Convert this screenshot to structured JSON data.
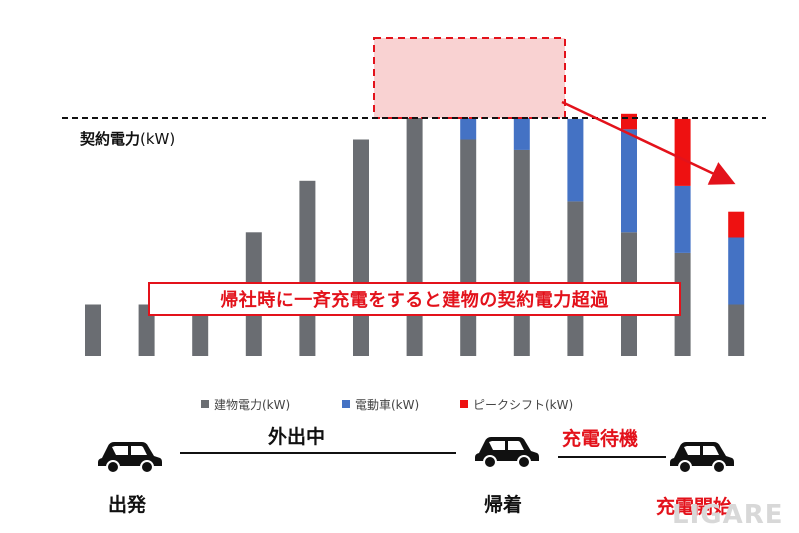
{
  "chart_data": {
    "type": "bar",
    "stacked": true,
    "categories": [
      "",
      "",
      "",
      "",
      "",
      "",
      "",
      "",
      "",
      "",
      "",
      "",
      ""
    ],
    "series": [
      {
        "name": "建物電力(kW)",
        "color": "#6a6d72",
        "values": [
          1.0,
          1.0,
          1.0,
          2.4,
          3.4,
          4.2,
          4.9,
          4.2,
          4.0,
          3.0,
          2.4,
          2.0,
          1.0
        ]
      },
      {
        "name": "電動車(kW)",
        "color": "#4472c4",
        "values": [
          0,
          0,
          0,
          0,
          0,
          0,
          0.2,
          1.0,
          2.0,
          1.6,
          2.0,
          1.3,
          1.3
        ]
      },
      {
        "name": "ピークシフト(kW)",
        "color": "#ee1111",
        "values": [
          0,
          0,
          0,
          0,
          0,
          0,
          0,
          0,
          0,
          0,
          0.3,
          1.3,
          0.5
        ]
      }
    ],
    "ylim": [
      0,
      6.5
    ],
    "contract_line": 4.8,
    "contract_label_bold": "契約電力",
    "contract_label_unit": "(kW)",
    "legend_position": "bottom",
    "annotation": "帰社時に一斉充電をすると建物の契約電力超過"
  },
  "legend": [
    "建物電力(kW)",
    "電動車(kW)",
    "ピークシフト(kW)"
  ],
  "timeline": {
    "depart": "出発",
    "out": "外出中",
    "return": "帰着",
    "wait": "充電待機",
    "start": "充電開始"
  },
  "watermark": "LIGARE"
}
